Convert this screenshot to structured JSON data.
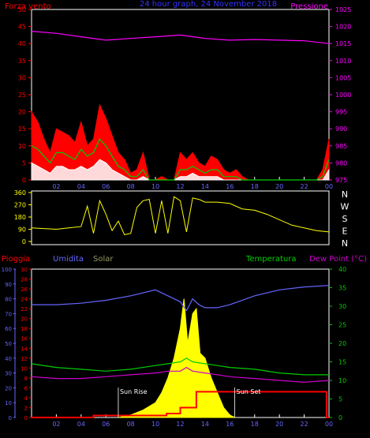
{
  "chart_data": [
    {
      "type": "line",
      "title": "24 hour graph, 24 November 2018",
      "left_label": "Forza vento",
      "right_label": "Pressione",
      "x_ticks": [
        "02",
        "04",
        "06",
        "08",
        "10",
        "12",
        "14",
        "16",
        "18",
        "20",
        "22",
        "00"
      ],
      "left_axis": {
        "min": 0,
        "max": 50,
        "ticks": [
          "0",
          "5",
          "10",
          "15",
          "20",
          "25",
          "30",
          "35",
          "40",
          "45",
          "50"
        ]
      },
      "right_axis": {
        "min": 975,
        "max": 1025,
        "ticks": [
          "975",
          "980",
          "985",
          "990",
          "995",
          "1000",
          "1005",
          "1010",
          "1015",
          "1020",
          "1025"
        ]
      },
      "colors": {
        "gust": "#ff0000",
        "avg_wind": "#00cc00",
        "min_wind": "#ffffff",
        "pressure": "#ff00ff",
        "axis_left": "#ff0000",
        "axis_right": "#ff00ff",
        "title": "#3333ff"
      },
      "series": [
        {
          "key": "pressure",
          "x_hours": [
            0,
            2,
            4,
            6,
            8,
            10,
            12,
            14,
            16,
            18,
            20,
            22,
            24
          ],
          "values": [
            1018.6,
            1018.0,
            1017.0,
            1016.0,
            1016.5,
            1017.0,
            1017.5,
            1016.5,
            1016.0,
            1016.2,
            1016.0,
            1015.8,
            1015.0
          ]
        },
        {
          "key": "gust",
          "x_hours": [
            0,
            0.5,
            1,
            1.5,
            2,
            2.5,
            3,
            3.5,
            4,
            4.5,
            5,
            5.5,
            6,
            6.5,
            7,
            7.5,
            8,
            8.5,
            9,
            9.5,
            10,
            10.5,
            11,
            11.5,
            12,
            12.5,
            13,
            13.5,
            14,
            14.5,
            15,
            15.5,
            16,
            16.5,
            17,
            17.5,
            18,
            18.5,
            19,
            19.5,
            20,
            20.5,
            21,
            21.5,
            22,
            22.5,
            23,
            23.5,
            24
          ],
          "values": [
            20,
            17,
            12,
            8,
            15,
            14,
            13,
            11,
            17,
            10,
            12,
            22,
            18,
            13,
            8,
            6,
            2,
            3,
            8,
            0,
            0,
            1,
            0,
            0,
            8,
            6,
            8,
            5,
            4,
            7,
            6,
            3,
            2,
            3,
            1,
            0,
            0,
            0,
            0,
            0,
            0,
            0,
            0,
            0,
            0,
            0,
            0,
            3,
            12
          ]
        },
        {
          "key": "avg_wind",
          "x_hours": [
            0,
            0.5,
            1,
            1.5,
            2,
            2.5,
            3,
            3.5,
            4,
            4.5,
            5,
            5.5,
            6,
            6.5,
            7,
            7.5,
            8,
            8.5,
            9,
            9.5,
            10,
            10.5,
            11,
            11.5,
            12,
            12.5,
            13,
            13.5,
            14,
            14.5,
            15,
            15.5,
            16,
            16.5,
            17,
            17.5,
            18,
            18.5,
            19,
            19.5,
            20,
            20.5,
            21,
            21.5,
            22,
            22.5,
            23,
            23.5,
            24
          ],
          "values": [
            10,
            9,
            7,
            5,
            8,
            8,
            7,
            6,
            9,
            7,
            8,
            12,
            10,
            7,
            4,
            3,
            1,
            1,
            3,
            0,
            0,
            0,
            0,
            0,
            3,
            3,
            4,
            3,
            2,
            3,
            3,
            1,
            1,
            1,
            0,
            0,
            0,
            0,
            0,
            0,
            0,
            0,
            0,
            0,
            0,
            0,
            0,
            1,
            6
          ]
        },
        {
          "key": "min_wind",
          "x_hours": [
            0,
            0.5,
            1,
            1.5,
            2,
            2.5,
            3,
            3.5,
            4,
            4.5,
            5,
            5.5,
            6,
            6.5,
            7,
            7.5,
            8,
            8.5,
            9,
            9.5,
            10,
            10.5,
            11,
            11.5,
            12,
            12.5,
            13,
            13.5,
            14,
            14.5,
            15,
            15.5,
            16,
            16.5,
            17,
            17.5,
            18,
            18.5,
            19,
            19.5,
            20,
            20.5,
            21,
            21.5,
            22,
            22.5,
            23,
            23.5,
            24
          ],
          "values": [
            5,
            4,
            3,
            2,
            4,
            4,
            3,
            3,
            4,
            3,
            4,
            6,
            5,
            3,
            2,
            1,
            0,
            0,
            1,
            0,
            0,
            0,
            0,
            0,
            1,
            1,
            2,
            1,
            1,
            1,
            1,
            0,
            0,
            0,
            0,
            0,
            0,
            0,
            0,
            0,
            0,
            0,
            0,
            0,
            0,
            0,
            0,
            0,
            3
          ]
        }
      ]
    },
    {
      "type": "line",
      "x_ticks": [
        "02",
        "04",
        "06",
        "08",
        "10",
        "12",
        "14",
        "16",
        "18",
        "20",
        "22",
        "00"
      ],
      "left_axis": {
        "min": 0,
        "max": 360,
        "ticks": [
          "0",
          "90",
          "180",
          "270",
          "360"
        ]
      },
      "right_labels": [
        "N",
        "W",
        "S",
        "E",
        "N"
      ],
      "colors": {
        "direction": "#ffff00"
      },
      "series": [
        {
          "key": "direction",
          "x_hours": [
            0,
            1,
            2,
            3,
            4,
            4.5,
            5,
            5.5,
            6,
            6.5,
            7,
            7.5,
            8,
            8.5,
            9,
            9.5,
            10,
            10.5,
            11,
            11.5,
            12,
            12.5,
            13,
            13.5,
            14,
            15,
            16,
            17,
            18,
            19,
            20,
            21,
            22,
            23,
            24
          ],
          "values": [
            100,
            95,
            90,
            100,
            110,
            260,
            60,
            300,
            200,
            80,
            150,
            50,
            60,
            250,
            300,
            310,
            60,
            300,
            60,
            330,
            300,
            70,
            320,
            310,
            290,
            290,
            280,
            240,
            230,
            200,
            160,
            120,
            100,
            80,
            70
          ]
        }
      ]
    },
    {
      "type": "line",
      "legend": [
        "Pioggia",
        "Umidita",
        "Solar",
        "Temperatura",
        "Dew Point (°C)"
      ],
      "x_ticks": [
        "02",
        "04",
        "06",
        "08",
        "10",
        "12",
        "14",
        "16",
        "18",
        "20",
        "22",
        "00"
      ],
      "axis_rain": {
        "min": 0,
        "max": 30,
        "ticks": [
          "0",
          "2",
          "4",
          "6",
          "8",
          "10",
          "12",
          "14",
          "16",
          "18",
          "20",
          "22",
          "24",
          "26",
          "28",
          "30"
        ]
      },
      "axis_humidity": {
        "min": 0,
        "max": 100,
        "ticks": [
          "0",
          "10",
          "20",
          "30",
          "40",
          "50",
          "60",
          "70",
          "80",
          "90",
          "100"
        ]
      },
      "axis_temp": {
        "min": 0,
        "max": 40,
        "ticks": [
          "0",
          "5",
          "10",
          "15",
          "20",
          "25",
          "30",
          "35",
          "40"
        ]
      },
      "annotations": [
        {
          "text": "Sun Rise",
          "hour": 7.0
        },
        {
          "text": "Sun Set",
          "hour": 16.4
        }
      ],
      "colors": {
        "rain": "#ff0000",
        "humidity": "#6666ff",
        "solar": "#ffff00",
        "temperature": "#00cc00",
        "dewpoint": "#cc00cc",
        "solar_axis": "#999966"
      },
      "series": [
        {
          "key": "humidity",
          "x_hours": [
            0,
            2,
            4,
            6,
            8,
            10,
            11,
            12,
            12.5,
            13,
            13.5,
            14,
            15,
            16,
            18,
            20,
            22,
            24
          ],
          "values": [
            76,
            76,
            77,
            79,
            82,
            86,
            82,
            78,
            72,
            80,
            76,
            74,
            74,
            76,
            82,
            86,
            88,
            89
          ]
        },
        {
          "key": "temperature",
          "x_hours": [
            0,
            2,
            4,
            6,
            8,
            10,
            11,
            12,
            12.5,
            13,
            14,
            15,
            16,
            18,
            20,
            22,
            24
          ],
          "values": [
            14.5,
            13.5,
            13.0,
            12.5,
            13.0,
            14.0,
            14.5,
            15.0,
            16.0,
            15.0,
            14.5,
            14.0,
            13.5,
            13.0,
            12.0,
            11.5,
            11.5
          ]
        },
        {
          "key": "dewpoint",
          "x_hours": [
            0,
            2,
            4,
            6,
            8,
            10,
            11,
            12,
            12.5,
            13,
            14,
            15,
            16,
            18,
            20,
            22,
            24
          ],
          "values": [
            11.0,
            10.5,
            10.5,
            11.0,
            11.5,
            12.0,
            12.5,
            12.5,
            13.5,
            12.5,
            12.0,
            11.5,
            11.0,
            10.5,
            10.0,
            9.5,
            10.0
          ]
        },
        {
          "key": "rain",
          "x_hours": [
            0,
            5.0,
            5.0,
            10.9,
            10.9,
            12.0,
            12.0,
            13.3,
            13.3,
            23.8,
            23.8,
            24
          ],
          "values": [
            0,
            0,
            0.4,
            0.4,
            0.8,
            0.8,
            2.0,
            2.0,
            5.2,
            5.2,
            0,
            0
          ]
        },
        {
          "key": "solar",
          "x_hours": [
            7.0,
            8.0,
            9.0,
            10.0,
            10.5,
            11.0,
            11.5,
            12.0,
            12.3,
            12.6,
            13.0,
            13.3,
            13.6,
            14.0,
            14.5,
            15.0,
            15.5,
            16.0,
            16.4
          ],
          "values": [
            0,
            0.5,
            1.5,
            3,
            5,
            8,
            12,
            18,
            24,
            15,
            21,
            22,
            13,
            12,
            8,
            5,
            2,
            0.5,
            0
          ]
        }
      ]
    }
  ]
}
